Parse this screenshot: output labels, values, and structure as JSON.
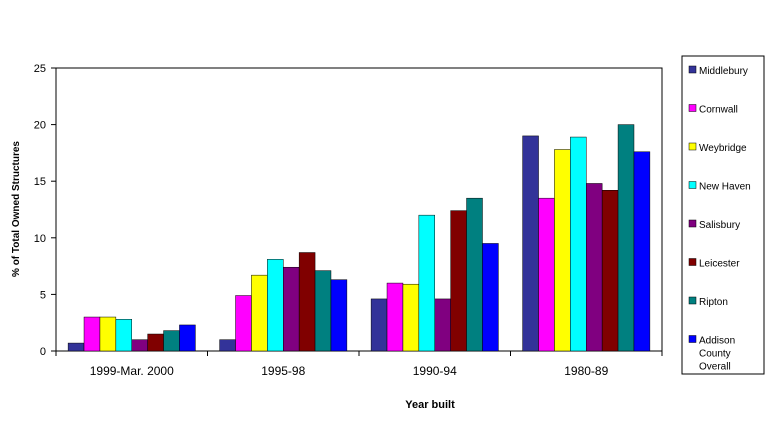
{
  "chart_data": {
    "type": "bar",
    "title": "",
    "xlabel": "Year built",
    "ylabel": "% of Total Owned Structures",
    "ylim": [
      0,
      25
    ],
    "yticks": [
      0,
      5,
      10,
      15,
      20,
      25
    ],
    "grid": false,
    "legend_position": "right",
    "categories": [
      "1999-Mar. 2000",
      "1995-98",
      "1990-94",
      "1980-89"
    ],
    "series": [
      {
        "name": "Middlebury",
        "color": "#333399",
        "values": [
          0.7,
          1.0,
          4.6,
          19.0
        ]
      },
      {
        "name": "Cornwall",
        "color": "#FF00FF",
        "values": [
          3.0,
          4.9,
          6.0,
          13.5
        ]
      },
      {
        "name": "Weybridge",
        "color": "#FFFF00",
        "values": [
          3.0,
          6.7,
          5.9,
          17.8
        ]
      },
      {
        "name": "New Haven",
        "color": "#00FFFF",
        "values": [
          2.8,
          8.1,
          12.0,
          18.9
        ]
      },
      {
        "name": "Salisbury",
        "color": "#800080",
        "values": [
          1.0,
          7.4,
          4.6,
          14.8
        ]
      },
      {
        "name": "Leicester",
        "color": "#800000",
        "values": [
          1.5,
          8.7,
          12.4,
          14.2
        ]
      },
      {
        "name": "Ripton",
        "color": "#008080",
        "values": [
          1.8,
          7.1,
          13.5,
          20.0
        ]
      },
      {
        "name": "Addison County Overall",
        "color": "#0000FF",
        "values": [
          2.3,
          6.3,
          9.5,
          17.6
        ]
      }
    ]
  }
}
